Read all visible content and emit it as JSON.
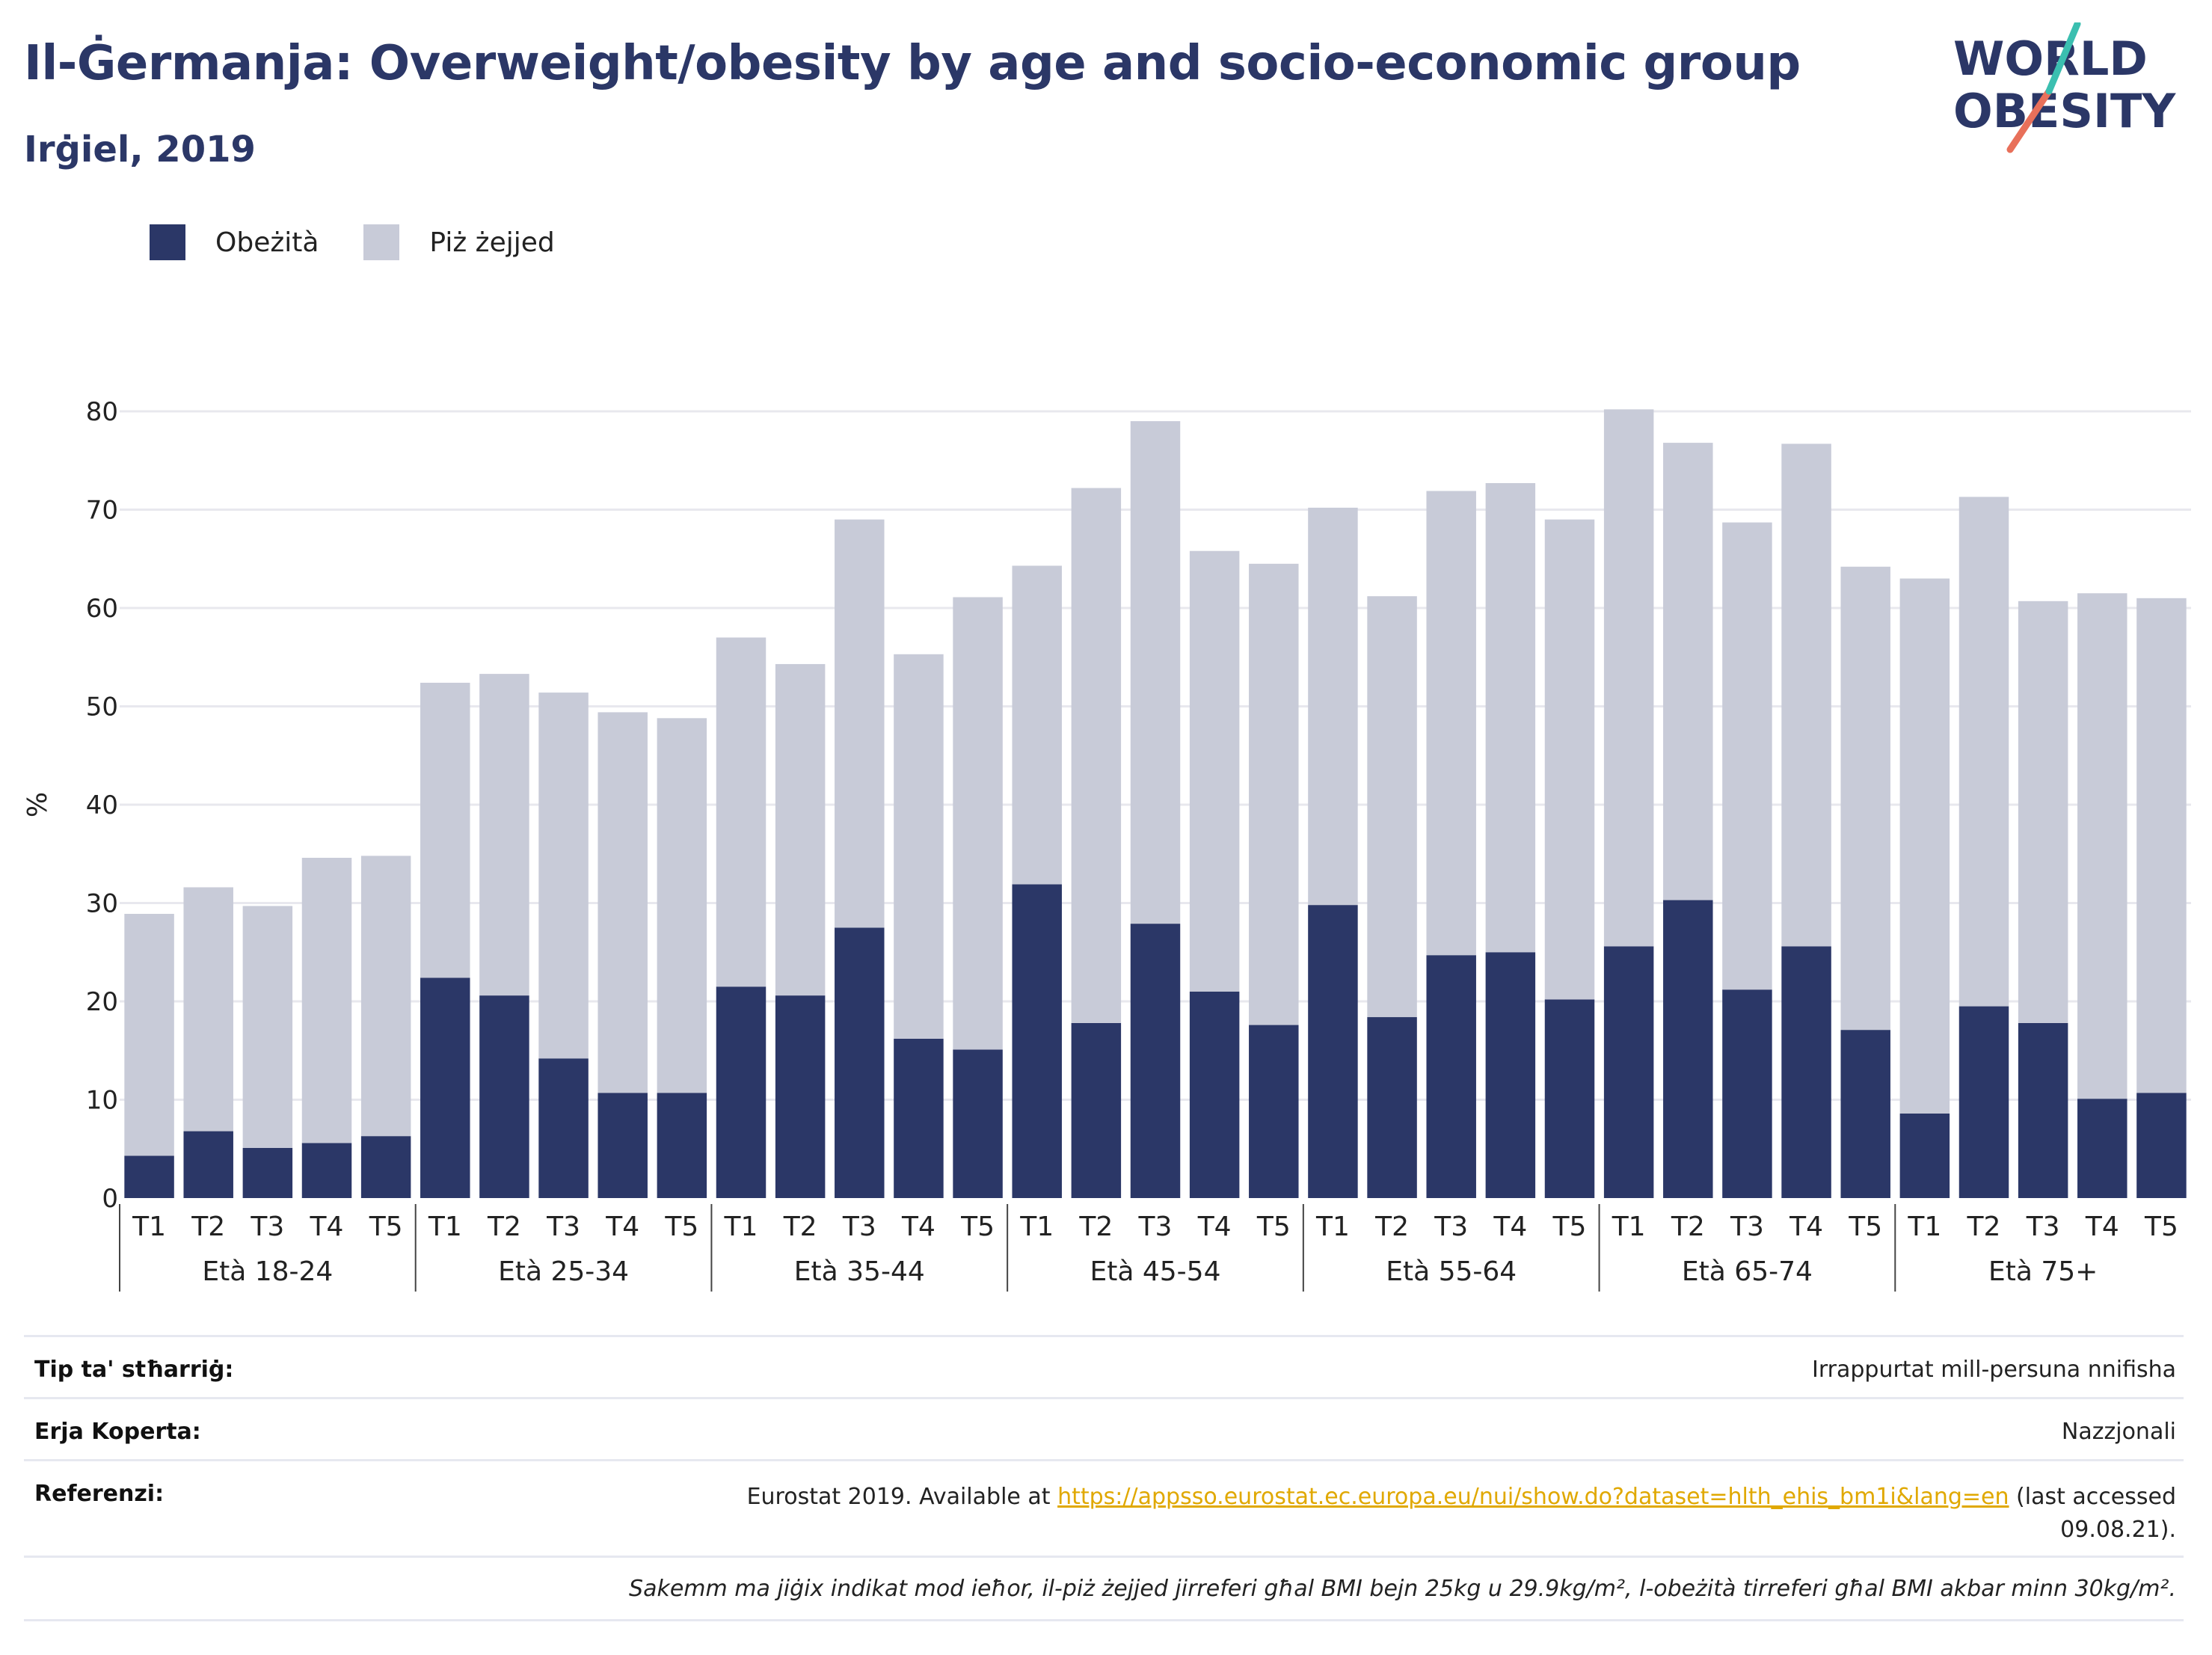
{
  "header": {
    "title": "Il-Ġermanja: Overweight/obesity by age and socio-economic group",
    "subtitle": "Irġiel, 2019"
  },
  "logo": {
    "line1": "WORLD",
    "line2": "OBESITY"
  },
  "colors": {
    "obese": "#2b3767",
    "overweight": "#c8cbd8",
    "axis_text": "#222222",
    "grid": "#e8e8ee"
  },
  "chart_data": {
    "type": "bar",
    "stacked": true,
    "title": "",
    "xlabel": "",
    "ylabel": "%",
    "ylim": [
      0,
      80
    ],
    "yticks": [
      0,
      10,
      20,
      30,
      40,
      50,
      60,
      70,
      80
    ],
    "grid": true,
    "legend_position": "top-left",
    "groups": [
      "Età 18-24",
      "Età 25-34",
      "Età 35-44",
      "Età 45-54",
      "Età 55-64",
      "Età 65-74",
      "Età 75+"
    ],
    "categories": [
      "T1",
      "T2",
      "T3",
      "T4",
      "T5"
    ],
    "series": [
      {
        "name": "Obeżità",
        "values": [
          [
            4.3,
            6.8,
            5.1,
            5.6,
            6.3
          ],
          [
            22.4,
            20.6,
            14.2,
            10.7,
            10.7
          ],
          [
            21.5,
            20.6,
            27.5,
            16.2,
            15.1
          ],
          [
            31.9,
            17.8,
            27.9,
            21.0,
            17.6
          ],
          [
            29.8,
            18.4,
            24.7,
            25.0,
            20.2
          ],
          [
            25.6,
            30.3,
            21.2,
            25.6,
            17.1
          ],
          [
            8.6,
            19.5,
            17.8,
            10.1,
            10.7
          ]
        ]
      },
      {
        "name": "Piż żejjed",
        "values": [
          [
            24.6,
            24.8,
            24.6,
            29.0,
            28.5
          ],
          [
            30.0,
            32.7,
            37.2,
            38.7,
            38.1
          ],
          [
            35.5,
            33.7,
            41.5,
            39.1,
            46.0
          ],
          [
            32.4,
            54.4,
            51.1,
            44.8,
            46.9
          ],
          [
            40.4,
            42.8,
            47.2,
            47.7,
            48.8
          ],
          [
            54.6,
            46.5,
            47.5,
            51.1,
            47.1
          ],
          [
            54.4,
            51.8,
            42.9,
            51.4,
            50.3
          ]
        ]
      }
    ]
  },
  "footer": {
    "survey_type_label": "Tip ta' stħarriġ:",
    "survey_type_value": "Irrappurtat mill-persuna nnifisha",
    "area_label": "Erja Koperta:",
    "area_value": "Nazzjonali",
    "references_label": "Referenzi:",
    "references_prefix": "Eurostat 2019. Available at ",
    "references_link": "https://appsso.eurostat.ec.europa.eu/nui/show.do?dataset=hlth_ehis_bm1i&lang=en",
    "references_suffix": " (last accessed",
    "references_date": "09.08.21).",
    "note": "Sakemm ma jiġix indikat mod ieħor, il-piż żejjed jirreferi għal BMI bejn 25kg u 29.9kg/m², l-obeżità tirreferi għal BMI akbar minn 30kg/m²."
  }
}
